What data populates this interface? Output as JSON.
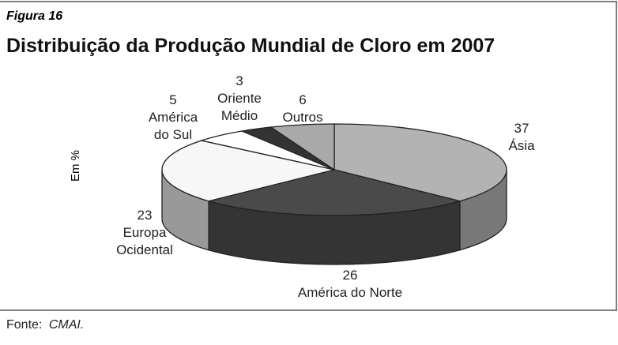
{
  "figure_label": "Figura 16",
  "chart_data": {
    "type": "pie",
    "title": "Distribuição da Produção Mundial de Cloro em 2007",
    "unit_label": "Em %",
    "categories": [
      "Ásia",
      "América do Norte",
      "Europa Ocidental",
      "América do Sul",
      "Oriente Médio",
      "Outros"
    ],
    "values": [
      37,
      26,
      23,
      5,
      3,
      6
    ],
    "colors": [
      "#b3b3b3",
      "#4a4a4a",
      "#f7f7f7",
      "#ffffff",
      "#333333",
      "#a9a9a9"
    ]
  },
  "source_label": "Fonte:",
  "source": "CMAI."
}
